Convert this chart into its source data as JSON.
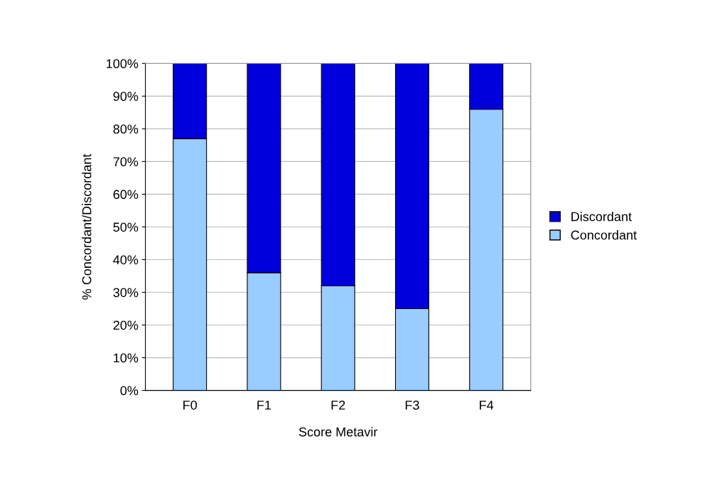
{
  "chart_data": {
    "type": "bar",
    "stacked": true,
    "xlabel": "Score Metavir",
    "ylabel": "% Concordant/Discordant",
    "categories": [
      "F0",
      "F1",
      "F2",
      "F3",
      "F4"
    ],
    "series": [
      {
        "name": "Concordant",
        "color": "#99ccff",
        "values": [
          77,
          36,
          32,
          25,
          86
        ]
      },
      {
        "name": "Discordant",
        "color": "#0000dd",
        "values": [
          23,
          64,
          68,
          75,
          14
        ]
      }
    ],
    "ylim": [
      0,
      100
    ],
    "yticks": [
      {
        "value": 0,
        "label": "0%"
      },
      {
        "value": 10,
        "label": "10%"
      },
      {
        "value": 20,
        "label": "20%"
      },
      {
        "value": 30,
        "label": "30%"
      },
      {
        "value": 40,
        "label": "40%"
      },
      {
        "value": 50,
        "label": "50%"
      },
      {
        "value": 60,
        "label": "60%"
      },
      {
        "value": 70,
        "label": "70%"
      },
      {
        "value": 80,
        "label": "80%"
      },
      {
        "value": 90,
        "label": "90%"
      },
      {
        "value": 100,
        "label": "100%"
      }
    ],
    "grid": "y",
    "legend": "right"
  }
}
